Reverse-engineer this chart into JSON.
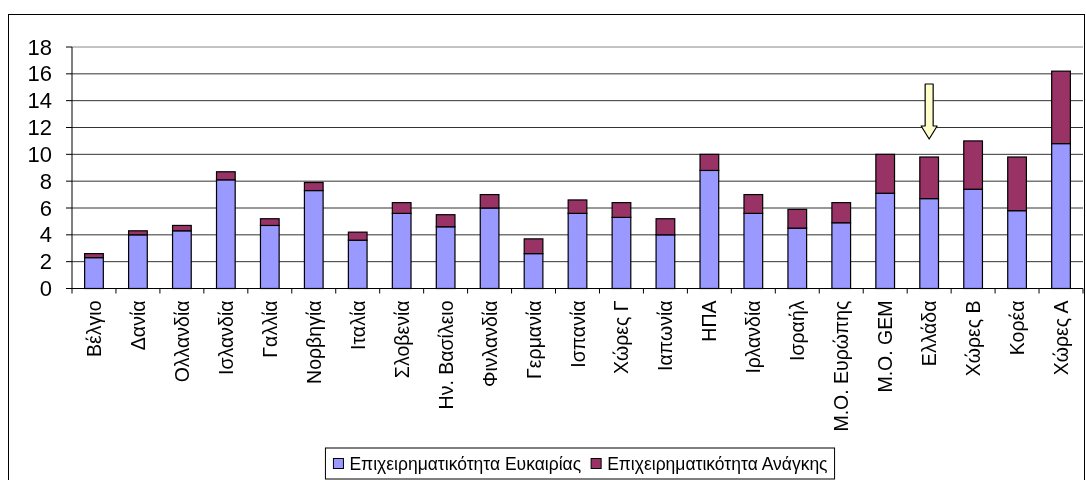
{
  "chart_data": {
    "type": "bar",
    "stacked": true,
    "categories": [
      "Βέλγιο",
      "Δανία",
      "Ολλανδία",
      "Ισλανδία",
      "Γαλλία",
      "Νορβηγία",
      "Ιταλία",
      "Σλοβενία",
      "Ην. Βασίλειο",
      "Φινλανδία",
      "Γερμανία",
      "Ισπανία",
      "Χώρες Γ",
      "Ιαπωνία",
      "ΗΠΑ",
      "Ιρλανδία",
      "Ισραήλ",
      "Μ.Ο. Ευρώπης",
      "Μ.Ο. GEM",
      "Ελλάδα",
      "Χώρες Β",
      "Κορέα",
      "Χώρες Α"
    ],
    "series": [
      {
        "name": "Επιχειρηματικότητα Ευκαιρίας",
        "color": "#9999ff",
        "values": [
          2.3,
          4.0,
          4.3,
          8.1,
          4.7,
          7.3,
          3.6,
          5.6,
          4.6,
          6.0,
          2.6,
          5.6,
          5.3,
          4.0,
          8.8,
          5.6,
          4.5,
          4.9,
          7.1,
          6.7,
          7.4,
          5.8,
          10.8
        ]
      },
      {
        "name": "Επιχειρηματικότητα Ανάγκης",
        "color": "#993366",
        "values": [
          0.3,
          0.3,
          0.4,
          0.6,
          0.5,
          0.6,
          0.6,
          0.8,
          0.9,
          1.0,
          1.1,
          1.0,
          1.1,
          1.2,
          1.2,
          1.4,
          1.4,
          1.5,
          2.9,
          3.1,
          3.6,
          4.0,
          5.4
        ]
      }
    ],
    "ylim": [
      0,
      18
    ],
    "yticks": [
      0,
      2,
      4,
      6,
      8,
      10,
      12,
      14,
      16,
      18
    ],
    "grid": "y",
    "legend": "bottom"
  }
}
